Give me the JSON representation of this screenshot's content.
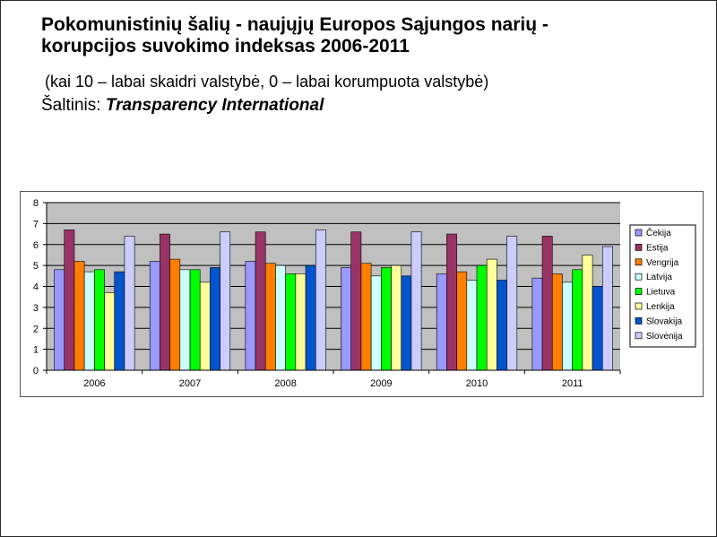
{
  "heading": {
    "title_line1": "Pokomunistinių šalių - naujųjų Europos Sąjungos narių -",
    "title_line2": "korupcijos suvokimo indeksas 2006-2011",
    "subtitle": "(kai 10 – labai skaidri valstybė, 0 – labai korumpuota valstybė)",
    "source_prefix": "Šaltinis: ",
    "source_name": "Transparency International"
  },
  "chart_data": {
    "type": "bar",
    "categories": [
      "2006",
      "2007",
      "2008",
      "2009",
      "2010",
      "2011"
    ],
    "ylim": [
      0,
      8
    ],
    "yticks": [
      "0",
      "1",
      "2",
      "3",
      "4",
      "5",
      "6",
      "7",
      "8"
    ],
    "grid": true,
    "legend": "right",
    "series": [
      {
        "name": "Čekija",
        "color": "#9999ff",
        "values": [
          4.8,
          5.2,
          5.2,
          4.9,
          4.6,
          4.4
        ]
      },
      {
        "name": "Estija",
        "color": "#993366",
        "values": [
          6.7,
          6.5,
          6.6,
          6.6,
          6.5,
          6.4
        ]
      },
      {
        "name": "Vengrija",
        "color": "#ff8000",
        "values": [
          5.2,
          5.3,
          5.1,
          5.1,
          4.7,
          4.6
        ]
      },
      {
        "name": "Latvija",
        "color": "#ccffff",
        "values": [
          4.7,
          4.8,
          5.0,
          4.5,
          4.3,
          4.2
        ]
      },
      {
        "name": "Lietuva",
        "color": "#00ff00",
        "values": [
          4.8,
          4.8,
          4.6,
          4.9,
          5.0,
          4.8
        ]
      },
      {
        "name": "Lenkija",
        "color": "#ffff99",
        "values": [
          3.7,
          4.2,
          4.6,
          5.0,
          5.3,
          5.5
        ]
      },
      {
        "name": "Slovakija",
        "color": "#0055cc",
        "values": [
          4.7,
          4.9,
          5.0,
          4.5,
          4.3,
          4.0
        ]
      },
      {
        "name": "Slovėnija",
        "color": "#ccccff",
        "values": [
          6.4,
          6.6,
          6.7,
          6.6,
          6.4,
          5.9
        ]
      }
    ]
  }
}
